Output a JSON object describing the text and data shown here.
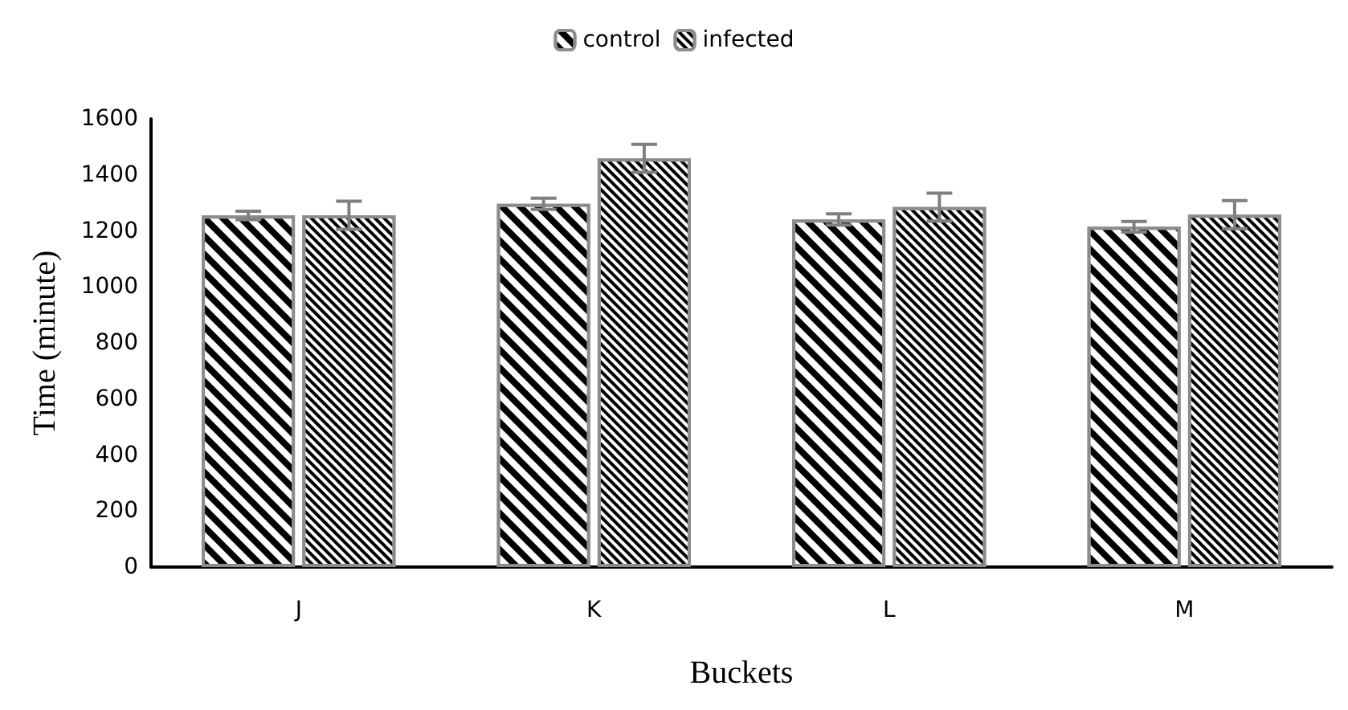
{
  "chart_data": {
    "type": "bar",
    "xlabel": "Buckets",
    "ylabel": "Time (minute)",
    "categories": [
      "J",
      "K",
      "L",
      "M"
    ],
    "series": [
      {
        "name": "control",
        "color": "#000000",
        "values": [
          1255,
          1297,
          1241,
          1215
        ],
        "errors": [
          15,
          20,
          20,
          19
        ]
      },
      {
        "name": "infected",
        "color": "#000000",
        "values": [
          1256,
          1459,
          1285,
          1258
        ],
        "errors": [
          50,
          50,
          50,
          50
        ]
      }
    ],
    "ylim": [
      0,
      1600
    ],
    "yticks": [
      0,
      200,
      400,
      600,
      800,
      1000,
      1200,
      1400,
      1600
    ],
    "grid": false,
    "legend": "top"
  }
}
